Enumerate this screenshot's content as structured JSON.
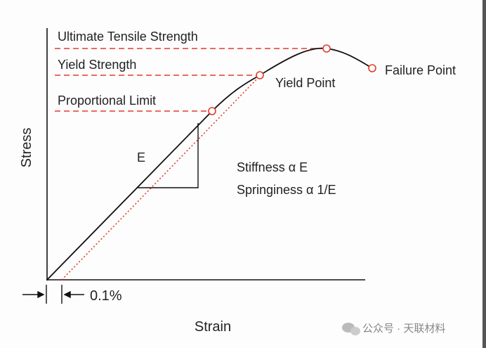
{
  "title": {
    "y_axis": "Stress",
    "x_axis": "Strain"
  },
  "levels": {
    "ultimate": "Ultimate Tensile Strength",
    "yield": "Yield Strength",
    "proportional": "Proportional Limit"
  },
  "points": {
    "yield_point": "Yield Point",
    "failure_point": "Failure Point"
  },
  "modulus": "E",
  "notes": {
    "stiffness": "Stiffness α E",
    "springiness": "Springiness α 1/E"
  },
  "offset": "0.1%",
  "watermark": "公众号 · 天联材料"
}
